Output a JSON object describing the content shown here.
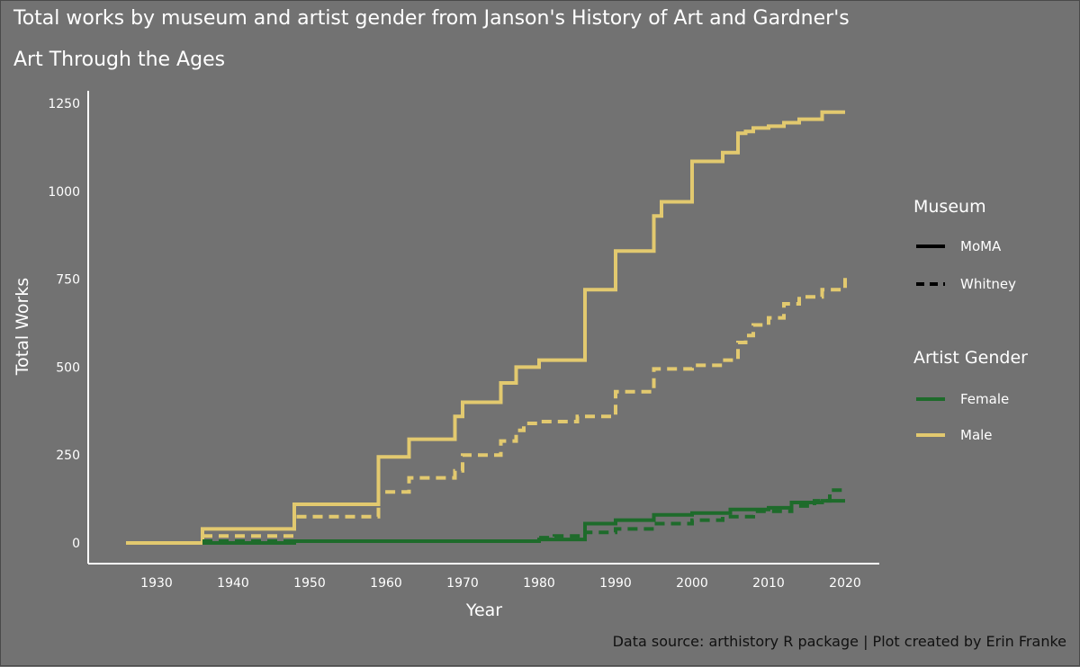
{
  "title_lines": [
    "Total works by museum and artist gender from Janson's History of Art and Gardner's",
    "Art Through the Ages"
  ],
  "caption": "Data source: arthistory R package | Plot created by Erin Franke",
  "chart_data": {
    "type": "line",
    "step": "hv",
    "title": "Total works by museum and artist gender from Janson's History of Art and Gardner's Art Through the Ages",
    "xlabel": "Year",
    "ylabel": "Total Works",
    "xlim": [
      1926,
      2020
    ],
    "ylim": [
      0,
      1250
    ],
    "x_ticks": [
      1930,
      1940,
      1950,
      1960,
      1970,
      1980,
      1990,
      2000,
      2010,
      2020
    ],
    "y_ticks": [
      0,
      250,
      500,
      750,
      1000,
      1250
    ],
    "grid": false,
    "legend_position": "right",
    "legend": {
      "museum_title": "Museum",
      "museum_entries": [
        {
          "name": "MoMA",
          "linetype": "solid"
        },
        {
          "name": "Whitney",
          "linetype": "dashed"
        }
      ],
      "gender_title": "Artist Gender",
      "gender_entries": [
        {
          "name": "Female",
          "color": "#1e6b2b"
        },
        {
          "name": "Male",
          "color": "#e2c96f"
        }
      ]
    },
    "series": [
      {
        "museum": "MoMA",
        "gender": "Male",
        "color": "#e2c96f",
        "linetype": "solid",
        "x": [
          1926,
          1936,
          1948,
          1959,
          1963,
          1969,
          1970,
          1975,
          1977,
          1980,
          1986,
          1990,
          1995,
          1996,
          2000,
          2004,
          2006,
          2007,
          2008,
          2010,
          2012,
          2014,
          2017,
          2020
        ],
        "y": [
          0,
          40,
          110,
          245,
          295,
          360,
          400,
          455,
          500,
          520,
          720,
          830,
          930,
          970,
          1085,
          1110,
          1165,
          1170,
          1180,
          1185,
          1195,
          1205,
          1225,
          1225
        ]
      },
      {
        "museum": "Whitney",
        "gender": "Male",
        "color": "#e2c96f",
        "linetype": "dashed",
        "x": [
          1936,
          1948,
          1959,
          1963,
          1969,
          1970,
          1975,
          1977,
          1978,
          1980,
          1985,
          1990,
          1995,
          2000,
          2004,
          2006,
          2007,
          2008,
          2010,
          2012,
          2014,
          2017,
          2020
        ],
        "y": [
          20,
          75,
          145,
          185,
          205,
          250,
          290,
          320,
          340,
          345,
          360,
          430,
          495,
          505,
          520,
          570,
          590,
          620,
          640,
          680,
          700,
          720,
          755
        ]
      },
      {
        "museum": "MoMA",
        "gender": "Female",
        "color": "#1e6b2b",
        "linetype": "solid",
        "x": [
          1936,
          1948,
          1960,
          1970,
          1980,
          1986,
          1990,
          1995,
          2000,
          2005,
          2010,
          2013,
          2017,
          2020
        ],
        "y": [
          0,
          5,
          5,
          5,
          10,
          55,
          65,
          80,
          85,
          95,
          100,
          115,
          120,
          120
        ]
      },
      {
        "museum": "Whitney",
        "gender": "Female",
        "color": "#1e6b2b",
        "linetype": "dashed",
        "x": [
          1936,
          1948,
          1960,
          1970,
          1980,
          1982,
          1986,
          1990,
          1995,
          2000,
          2004,
          2008,
          2013,
          2016,
          2018,
          2020
        ],
        "y": [
          5,
          5,
          5,
          5,
          15,
          20,
          30,
          40,
          55,
          65,
          75,
          90,
          105,
          120,
          150,
          150
        ]
      }
    ]
  }
}
